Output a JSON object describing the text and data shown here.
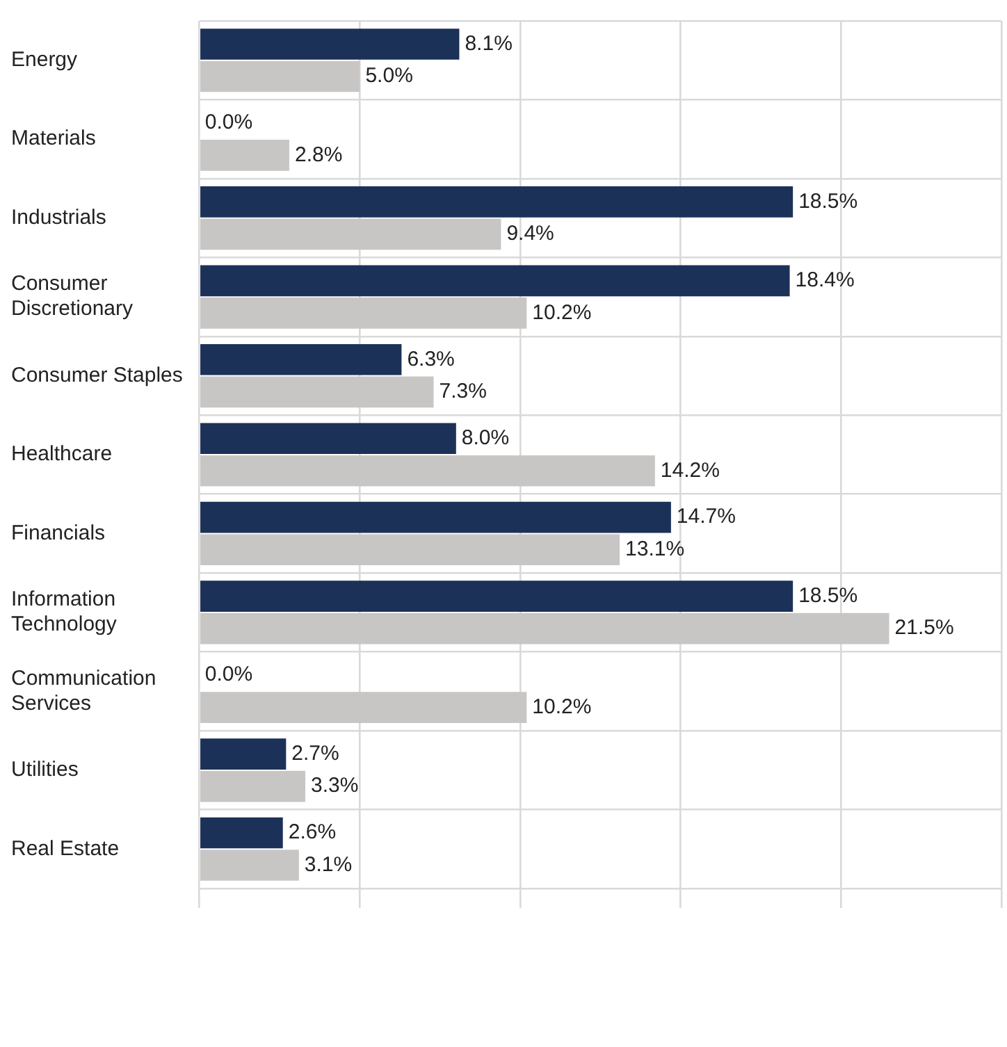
{
  "chart_data": {
    "type": "bar",
    "orientation": "horizontal",
    "categories": [
      "Energy",
      "Materials",
      "Industrials",
      "Consumer Discretionary",
      "Consumer Staples",
      "Healthcare",
      "Financials",
      "Information Technology",
      "Communication Services",
      "Utilities",
      "Real Estate"
    ],
    "series": [
      {
        "color": "#1c3158",
        "values": [
          8.1,
          0.0,
          18.5,
          18.4,
          6.3,
          8.0,
          14.7,
          18.5,
          0.0,
          2.7,
          2.6
        ],
        "value_labels": [
          "8.1%",
          "0.0%",
          "18.5%",
          "18.4%",
          "6.3%",
          "8.0%",
          "14.7%",
          "18.5%",
          "0.0%",
          "2.7%",
          "2.6%"
        ]
      },
      {
        "color": "#c8c6c4",
        "values": [
          5.0,
          2.8,
          9.4,
          10.2,
          7.3,
          14.2,
          13.1,
          21.5,
          10.2,
          3.3,
          3.1
        ],
        "value_labels": [
          "5.0%",
          "2.8%",
          "9.4%",
          "10.2%",
          "7.3%",
          "14.2%",
          "13.1%",
          "21.5%",
          "10.2%",
          "3.3%",
          "3.1%"
        ]
      }
    ],
    "xlim": [
      0,
      25
    ],
    "xticks": [
      {
        "value": 0,
        "label": null
      },
      {
        "value": 5,
        "label": null
      },
      {
        "value": 10,
        "label": null
      },
      {
        "value": 15,
        "label": null
      },
      {
        "value": 20,
        "label": null
      },
      {
        "value": 25,
        "label": null
      }
    ],
    "tick_labels": "y",
    "grid": true,
    "legend": false
  }
}
